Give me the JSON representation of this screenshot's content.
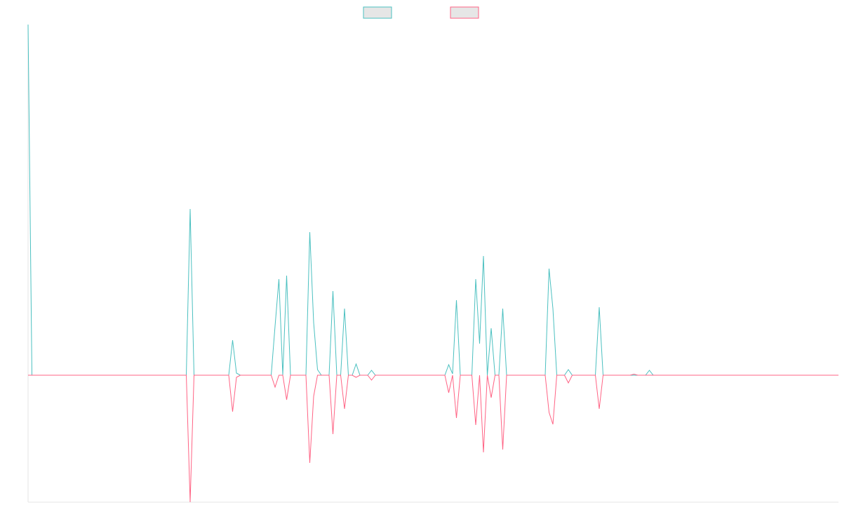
{
  "chart_data": {
    "type": "line",
    "categories": [
      null,
      null,
      null,
      null,
      null,
      null,
      null,
      null,
      null,
      null,
      null,
      null,
      null,
      null,
      null,
      null,
      null,
      null,
      null,
      null,
      null,
      null,
      null,
      null,
      null,
      null,
      null,
      null,
      null,
      null,
      null,
      null,
      null,
      null,
      null,
      null,
      null,
      null,
      null,
      null,
      null,
      null,
      null,
      null,
      null,
      null,
      null,
      null,
      null,
      null,
      null,
      null,
      null,
      null,
      null,
      null,
      null,
      null,
      null,
      null,
      null,
      null,
      null,
      null,
      null,
      null,
      null,
      null,
      null,
      null,
      null,
      null,
      null,
      null,
      null,
      null,
      null,
      null,
      null,
      null,
      null,
      null,
      null,
      null,
      null,
      null,
      null,
      null,
      null,
      null,
      null,
      null,
      null,
      null,
      null,
      null,
      null,
      null,
      null,
      null,
      null,
      null,
      null,
      null,
      null,
      null,
      null,
      null,
      null,
      null,
      null,
      null,
      null,
      null,
      null,
      null,
      null,
      null,
      null,
      null,
      null,
      null,
      null,
      null,
      null,
      null,
      null,
      null,
      null,
      null,
      null,
      null,
      null,
      null,
      null,
      null,
      null,
      null,
      null,
      null,
      null,
      null,
      null,
      null,
      null,
      null,
      null,
      null,
      null,
      null,
      null,
      null,
      null,
      null,
      null,
      null,
      null,
      null,
      null,
      null,
      null,
      null,
      null,
      null,
      null,
      null,
      null,
      null,
      null,
      null,
      null,
      null,
      null,
      null,
      null,
      null,
      null,
      null,
      null,
      null,
      null,
      null,
      null,
      null,
      null,
      null,
      null,
      null,
      null,
      null,
      null,
      null,
      null,
      null,
      null,
      null,
      null,
      null,
      null,
      null,
      null,
      null,
      null,
      null,
      null,
      null,
      null,
      null,
      null,
      null,
      null
    ],
    "series": [
      {
        "color": "#4bc0c0",
        "values": [
          100,
          0,
          0,
          0,
          0,
          0,
          0,
          0,
          0,
          0,
          0,
          0,
          0,
          0,
          0,
          0,
          0,
          0,
          0,
          0,
          0,
          0,
          0,
          0,
          0,
          0,
          0,
          0,
          0,
          0,
          0,
          0,
          0,
          0,
          0,
          0,
          0,
          0,
          0,
          0,
          0,
          0,
          47.4,
          0,
          0,
          0,
          0,
          0,
          0,
          0,
          0,
          0,
          0,
          10,
          0.6,
          0,
          0,
          0,
          0,
          0,
          0,
          0,
          0,
          0,
          14,
          27.4,
          0,
          28.4,
          0,
          0,
          0,
          0,
          0,
          40.8,
          15,
          1.6,
          0,
          0,
          0,
          24,
          0,
          0,
          19,
          0,
          0,
          3.2,
          0,
          0,
          0,
          1.4,
          0,
          0,
          0,
          0,
          0,
          0,
          0,
          0,
          0,
          0,
          0,
          0,
          0,
          0,
          0,
          0,
          0,
          0,
          0,
          3,
          0.4,
          21.4,
          0,
          0,
          0,
          0,
          27.4,
          9,
          34,
          0,
          13.4,
          0,
          0,
          19,
          0,
          0,
          0,
          0,
          0,
          0,
          0,
          0,
          0,
          0,
          0,
          30.4,
          19,
          0,
          0,
          0,
          1.6,
          0,
          0,
          0,
          0,
          0,
          0,
          0,
          19.4,
          0,
          0,
          0,
          0,
          0,
          0,
          0,
          0,
          0,
          0,
          0,
          0,
          1.4,
          0,
          0,
          0,
          0,
          0,
          0,
          0,
          0,
          0,
          0,
          0,
          0,
          0,
          0,
          0,
          0,
          0,
          0,
          0,
          0,
          0,
          0,
          0,
          0,
          0,
          0,
          0,
          0,
          0,
          0,
          0,
          0,
          0,
          0,
          0,
          0,
          0,
          0,
          0,
          0,
          0,
          0,
          0,
          0,
          0,
          0,
          0,
          0,
          0
        ]
      },
      {
        "color": "#ff6384",
        "values": [
          0,
          0,
          0,
          0,
          0,
          0,
          0,
          0,
          0,
          0,
          0,
          0,
          0,
          0,
          0,
          0,
          0,
          0,
          0,
          0,
          0,
          0,
          0,
          0,
          0,
          0,
          0,
          0,
          0,
          0,
          0,
          0,
          0,
          0,
          0,
          0,
          0,
          0,
          0,
          0,
          0,
          0,
          -36.2,
          0,
          0,
          0,
          0,
          0,
          0,
          0,
          0,
          0,
          0,
          -10.4,
          -0.6,
          0,
          0,
          0,
          0,
          0,
          0,
          0,
          0,
          0,
          -3.4,
          0,
          0,
          -7,
          0,
          0,
          0,
          0,
          0,
          -25,
          -6,
          0,
          0,
          0,
          0,
          -16.8,
          0,
          0,
          -9.6,
          0,
          0,
          -0.6,
          0,
          0,
          0,
          -1.4,
          0,
          0,
          0,
          0,
          0,
          0,
          0,
          0,
          0,
          0,
          0,
          0,
          0,
          0,
          0,
          0,
          0,
          0,
          0,
          -5,
          0,
          -12.2,
          0,
          0,
          0,
          0,
          -14.2,
          0,
          -22,
          0,
          -6.4,
          0,
          0,
          -21.2,
          0,
          0,
          0,
          0,
          0,
          0,
          0,
          0,
          0,
          0,
          0,
          -10.6,
          -14,
          0,
          0,
          0,
          -2.2,
          0,
          0,
          0,
          0,
          0,
          0,
          0,
          -9.6,
          0,
          0,
          0,
          0,
          0,
          0,
          0,
          0,
          0.3,
          0,
          0,
          0,
          0,
          0,
          0,
          0,
          0,
          0,
          0,
          0,
          0,
          0,
          0,
          0,
          0,
          0,
          0,
          0,
          0,
          0,
          0,
          0,
          0,
          0,
          0,
          0,
          0,
          0,
          0,
          0,
          0,
          0,
          0,
          0,
          0,
          0,
          0,
          0,
          0,
          0,
          0,
          0,
          0,
          0,
          0,
          0,
          0,
          0,
          0,
          0,
          0,
          0
        ]
      }
    ],
    "ylim": [
      -36.2,
      100
    ],
    "grid": false,
    "legend": "top"
  }
}
